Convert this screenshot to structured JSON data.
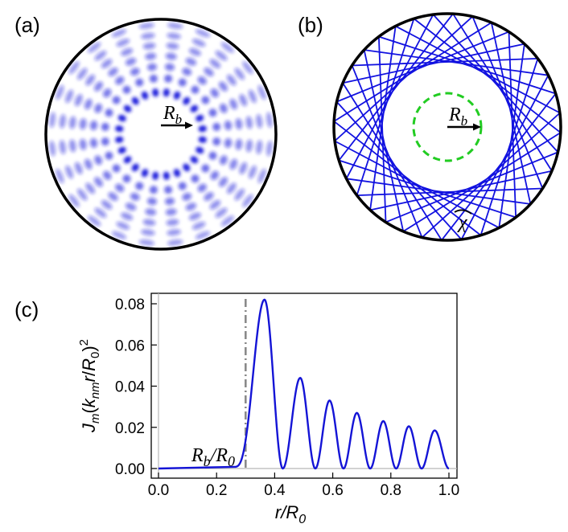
{
  "panels": {
    "a": {
      "label": "(a)",
      "annotation_main": "R",
      "annotation_sub": "b",
      "description_colors": {
        "pattern": "#1a1adb",
        "boundary": "#000000"
      },
      "radial_peaks": 7,
      "angular_lobes": 24
    },
    "b": {
      "label": "(b)",
      "annotation_main": "R",
      "annotation_sub": "b",
      "angle_symbol": "χ",
      "colors": {
        "rays": "#1212e0",
        "caustic": "#22cc22",
        "boundary": "#000000"
      },
      "caustic_radius_ratio": 0.3,
      "ray_step": 11,
      "ray_count": 36
    },
    "c": {
      "label": "(c)",
      "annotation_main": "R",
      "annotation_sub": "b",
      "annotation_slash": "/R",
      "annotation_sub2": "0",
      "marker_x": 0.3
    }
  },
  "chart_data": {
    "type": "line",
    "xlabel_main": "r/R",
    "xlabel_sub": "0",
    "ylabel_text": "J_m(k_nm r/R_0)^2",
    "x_ticks": [
      "0.0",
      "0.2",
      "0.4",
      "0.6",
      "0.8",
      "1.0"
    ],
    "y_ticks": [
      "0.00",
      "0.02",
      "0.04",
      "0.06",
      "0.08"
    ],
    "xlim": [
      0.0,
      1.0
    ],
    "ylim": [
      -0.004,
      0.087
    ],
    "marker_x": 0.3,
    "series_color": "#1414d6",
    "peaks": [
      {
        "x": 0.365,
        "y": 0.082
      },
      {
        "x": 0.488,
        "y": 0.044
      },
      {
        "x": 0.589,
        "y": 0.033
      },
      {
        "x": 0.683,
        "y": 0.027
      },
      {
        "x": 0.774,
        "y": 0.023
      },
      {
        "x": 0.862,
        "y": 0.0205
      },
      {
        "x": 0.951,
        "y": 0.0185
      }
    ],
    "zeros": [
      0.428,
      0.54,
      0.637,
      0.729,
      0.818,
      0.906,
      1.0
    ]
  }
}
